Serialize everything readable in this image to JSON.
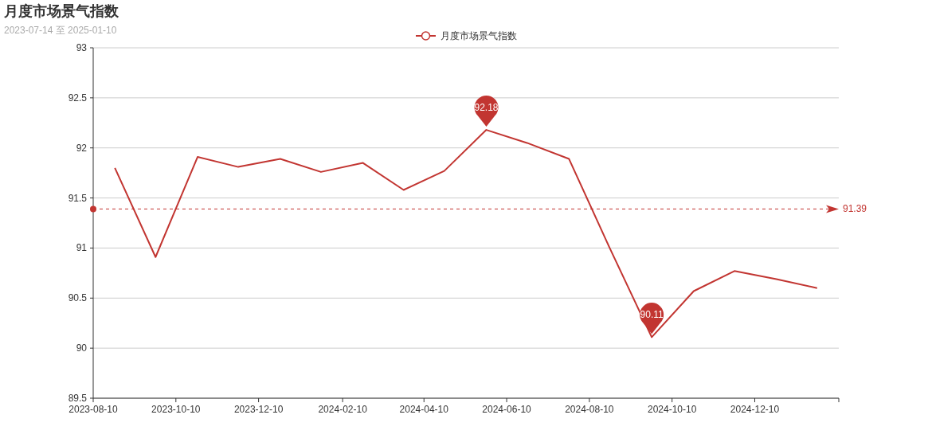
{
  "chart_data": {
    "type": "line",
    "title": "月度市场景气指数",
    "subtitle": "2023-07-14 至 2025-01-10",
    "x": [
      "2023-08-26",
      "2023-09-25",
      "2023-10-26",
      "2023-11-25",
      "2023-12-26",
      "2024-01-25",
      "2024-02-25",
      "2024-03-26",
      "2024-04-25",
      "2024-05-26",
      "2024-06-25",
      "2024-07-26",
      "2024-08-25",
      "2024-09-25",
      "2024-10-26",
      "2024-11-25",
      "2024-12-26",
      "2025-01-25"
    ],
    "series": [
      {
        "name": "月度市场景气指数",
        "color": "#c23531",
        "values": [
          91.8,
          90.91,
          91.91,
          91.81,
          91.89,
          91.76,
          91.85,
          91.58,
          91.77,
          92.18,
          92.05,
          91.89,
          91.0,
          90.11,
          90.57,
          90.77,
          90.69,
          90.6
        ]
      }
    ],
    "xlim": [
      "2023-08-10",
      "2025-02-10"
    ],
    "xticks": [
      {
        "value": "2023-08-10",
        "label": "2023-08-10"
      },
      {
        "value": "2023-10-10",
        "label": "2023-10-10"
      },
      {
        "value": "2023-12-10",
        "label": "2023-12-10"
      },
      {
        "value": "2024-02-10",
        "label": "2024-02-10"
      },
      {
        "value": "2024-04-10",
        "label": "2024-04-10"
      },
      {
        "value": "2024-06-10",
        "label": "2024-06-10"
      },
      {
        "value": "2024-08-10",
        "label": "2024-08-10"
      },
      {
        "value": "2024-10-10",
        "label": "2024-10-10"
      },
      {
        "value": "2024-12-10",
        "label": "2024-12-10"
      },
      {
        "value": "2025-02-10",
        "label": null
      }
    ],
    "ylim": [
      89.5,
      93
    ],
    "yticks": [
      89.5,
      90,
      90.5,
      91,
      91.5,
      92,
      92.5,
      93
    ],
    "grid": "y",
    "legend": "top",
    "line_style": "solid",
    "ref_lines": [
      {
        "axis": "y",
        "value": 91.39,
        "label": "91.39",
        "color": "#c23531",
        "line_style": "dashed"
      }
    ],
    "annotations": [
      {
        "text": "92.18",
        "x": "2024-05-26",
        "y": 92.18
      },
      {
        "text": "90.11",
        "x": "2024-09-25",
        "y": 90.11
      }
    ]
  }
}
